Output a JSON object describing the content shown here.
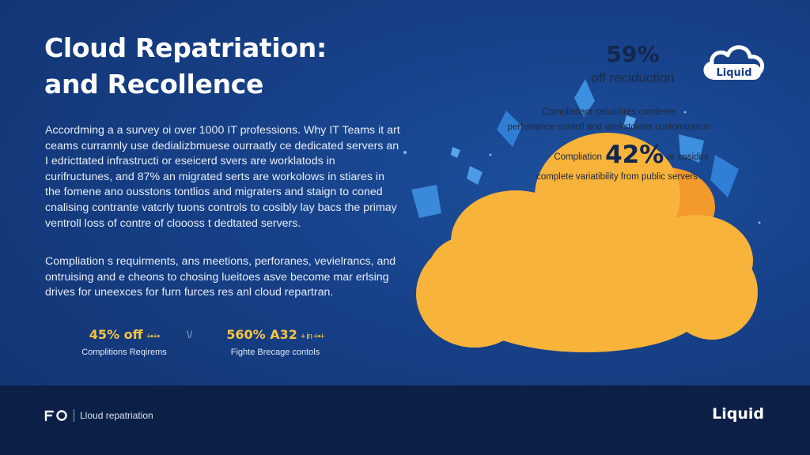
{
  "title": {
    "line1": "Cloud Repatriation:",
    "line2": "and Recollence"
  },
  "logo": {
    "icon": "cloud-logo-icon",
    "text": "Liquid"
  },
  "paragraphs": {
    "intro": "Accordming a a survey oi over 1000 IT professions. Why IT Teams it art ceams currannly use dedializbmuese ourraatly ce dedicated servers an I edricttated infrastructi or eseicerd svers are worklatods in curifructunes, and 87% an migrated serts are workolows in stiares in the fomene ano ousstons tontlios and migraters and staign to coned cnalising contrante vatcrly tuons controls to cosibly lay bacs the primay ventroll loss of contre of cloooss t dedtated servers.",
    "second": "Compliation s requirments, ans meetions, perforanes, vevielrancs, and ontruising and e cheons to chosing lueitoes asve become mar erlsing drives for uneexces for furn furces res anl cloud repartran."
  },
  "stats": [
    {
      "value": "45% off",
      "spark": "+•+•",
      "label": "Complitions Reqirems"
    },
    {
      "value": "560% A32",
      "spark": "+ in +•+",
      "label": "Fighte Brecage contols"
    }
  ],
  "cloud": {
    "stat1_value": "59%",
    "stat1_label": "off reciduction",
    "line_a": "Compllatiam cecuiriires conderes",
    "line_b": "perfomance contoll and workstdions customization",
    "stat2_prefix": "Compliation",
    "stat2_value": "42%",
    "stat2_suffix": "ar cosidirs",
    "line_c": "complete variatibility from public servers"
  },
  "footer": {
    "logo_icon": "fo-logo-icon",
    "caption": "Lloud repatriation",
    "brand": "Liquid"
  },
  "colors": {
    "background": "#163f86",
    "footer": "#0c1f47",
    "accent": "#f6c443",
    "cloud": "#f7b33a"
  }
}
